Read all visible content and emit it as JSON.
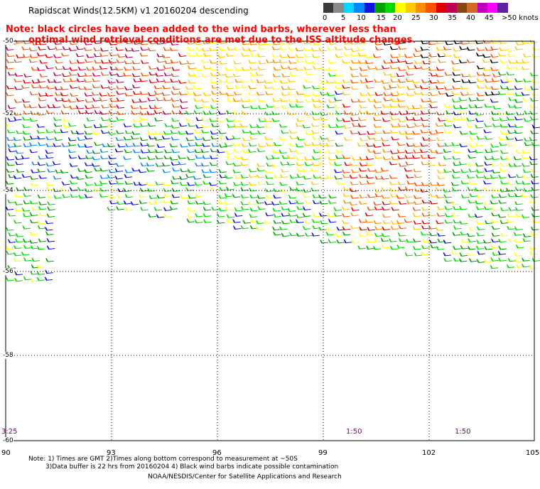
{
  "title": "Rapidscat Winds(12.5KM) v1 20160204 descending",
  "note_lines": [
    "Note: black circles have been added to the wind barbs, wherever less than",
    "optimal wind retrieval conditions are met due to the ISS altitude changes."
  ],
  "legend": {
    "labels": [
      "0",
      "5",
      "10",
      "15",
      "20",
      "25",
      "30",
      "35",
      "40",
      "45",
      ">50 knots"
    ],
    "colors": [
      "#3a3a3a",
      "#8a8a8a",
      "#00d8ff",
      "#0088ff",
      "#1010e0",
      "#00a000",
      "#00d800",
      "#ffff00",
      "#ffc800",
      "#ff8c00",
      "#ff5000",
      "#e00000",
      "#c00050",
      "#8b4513",
      "#d2691e",
      "#c000c0",
      "#ff00ff",
      "#6020a0"
    ]
  },
  "axes": {
    "lat_labels": [
      "-50",
      "-52",
      "-54",
      "-56",
      "-58",
      "-60"
    ],
    "lon_labels": [
      "90",
      "93",
      "96",
      "99",
      "102",
      "105"
    ]
  },
  "time_labels": [
    "3:25",
    "1:50",
    "1:50"
  ],
  "footer": {
    "line1": "Note: 1) Times are GMT 2)Times along bottom correspond to measurement at ~50S",
    "line2": "3)Data buffer is 22 hrs from 20160204 4) Black wind barbs indicate possible contamination",
    "line3": "NOAA/NESDIS/Center for Satellite Applications and Research"
  }
}
